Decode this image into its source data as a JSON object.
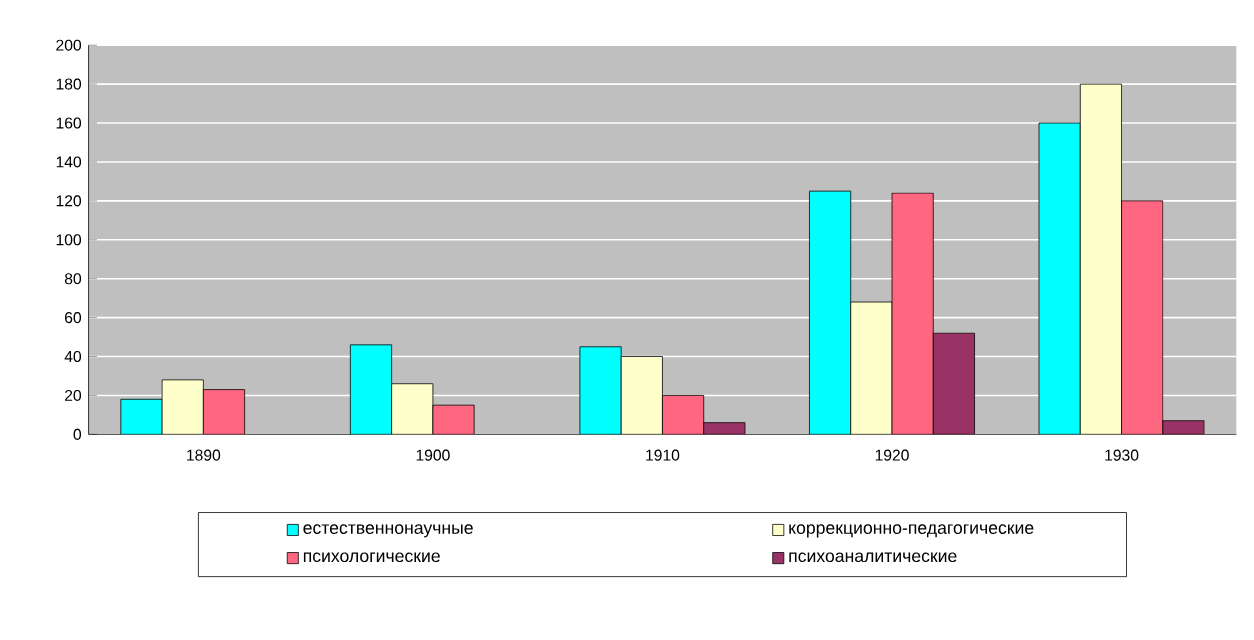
{
  "chart_data": {
    "type": "bar",
    "categories": [
      "1890",
      "1900",
      "1910",
      "1920",
      "1930"
    ],
    "series": [
      {
        "name": "естественнонаучные",
        "color": "#00ffff",
        "values": [
          18,
          46,
          45,
          125,
          160
        ]
      },
      {
        "name": "коррекционно-педагогические",
        "color": "#ffffcc",
        "values": [
          28,
          26,
          40,
          68,
          180
        ]
      },
      {
        "name": "психологические",
        "color": "#ff6680",
        "values": [
          23,
          15,
          20,
          124,
          120
        ]
      },
      {
        "name": "психоаналитические",
        "color": "#993366",
        "values": [
          null,
          null,
          6,
          52,
          7
        ]
      }
    ],
    "ylim": [
      0,
      200
    ],
    "yticks": [
      0,
      20,
      40,
      60,
      80,
      100,
      120,
      140,
      160,
      180,
      200
    ],
    "grid": "y",
    "legend": "bottom"
  }
}
